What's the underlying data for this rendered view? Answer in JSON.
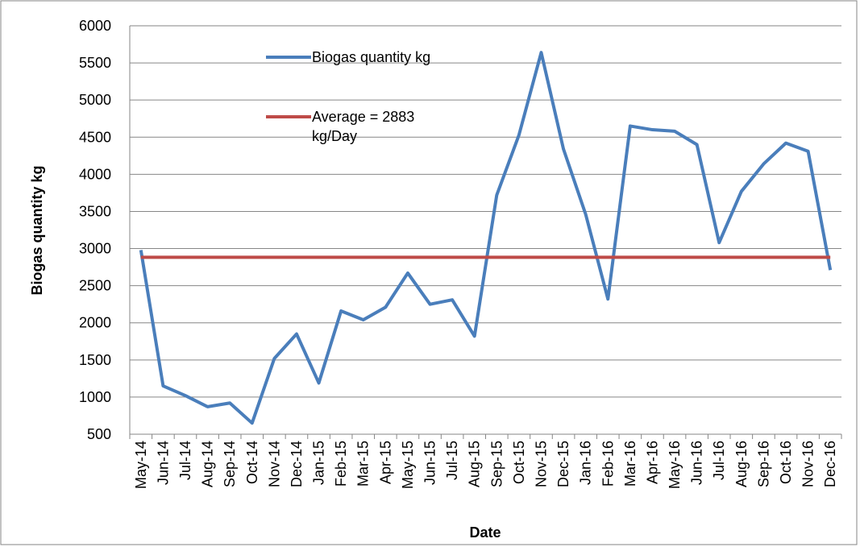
{
  "chart_data": {
    "type": "line",
    "y_label": "Biogas quantity kg",
    "x_label": "Date",
    "categories": [
      "May-14",
      "Jun-14",
      "Jul-14",
      "Aug-14",
      "Sep-14",
      "Oct-14",
      "Nov-14",
      "Dec-14",
      "Jan-15",
      "Feb-15",
      "Mar-15",
      "Apr-15",
      "May-15",
      "Jun-15",
      "Jul-15",
      "Aug-15",
      "Sep-15",
      "Oct-15",
      "Nov-15",
      "Dec-15",
      "Jan-16",
      "Feb-16",
      "Mar-16",
      "Apr-16",
      "May-16",
      "Jun-16",
      "Jul-16",
      "Aug-16",
      "Sep-16",
      "Oct-16",
      "Nov-16",
      "Dec-16"
    ],
    "series": [
      {
        "name": "Biogas quantity kg",
        "color": "#4a7ebb",
        "values": [
          2980,
          1150,
          1020,
          870,
          920,
          650,
          1520,
          1850,
          1190,
          2160,
          2040,
          2210,
          2670,
          2250,
          2310,
          1820,
          3720,
          4530,
          5640,
          4340,
          3460,
          2320,
          4650,
          4600,
          4580,
          4400,
          3080,
          3770,
          4140,
          4420,
          4310,
          2710
        ]
      },
      {
        "name": "Average = 2883 kg/Day",
        "color": "#be4b48",
        "values": [
          2883,
          2883,
          2883,
          2883,
          2883,
          2883,
          2883,
          2883,
          2883,
          2883,
          2883,
          2883,
          2883,
          2883,
          2883,
          2883,
          2883,
          2883,
          2883,
          2883,
          2883,
          2883,
          2883,
          2883,
          2883,
          2883,
          2883,
          2883,
          2883,
          2883,
          2883,
          2883
        ]
      }
    ],
    "ylim": [
      500,
      6000
    ],
    "yticks": [
      500,
      1000,
      1500,
      2000,
      2500,
      3000,
      3500,
      4000,
      4500,
      5000,
      5500,
      6000
    ],
    "grid": true,
    "legend": "upper center"
  }
}
